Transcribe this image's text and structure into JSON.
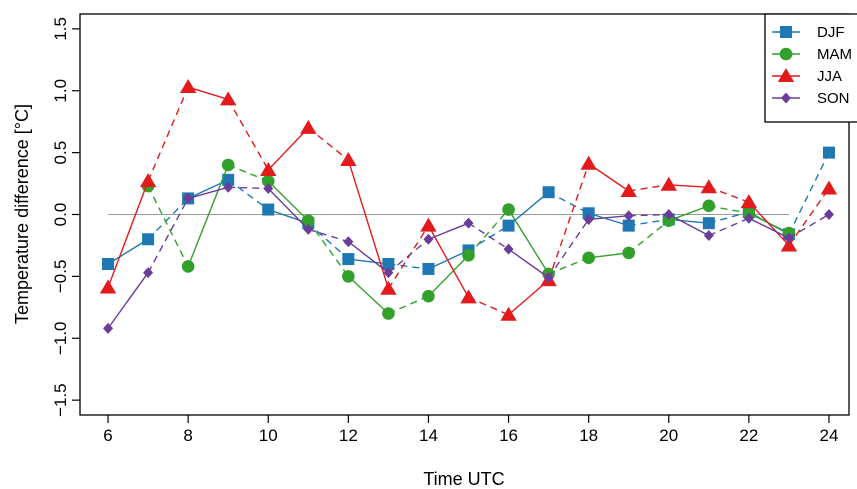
{
  "chart_data": {
    "type": "line",
    "title": "",
    "xlabel": "Time UTC",
    "ylabel": "Temperature difference [°C]",
    "xlim": [
      5.3,
      24.5
    ],
    "ylim": [
      -1.62,
      1.62
    ],
    "x_ticks": [
      6,
      8,
      10,
      12,
      14,
      16,
      18,
      20,
      22,
      24
    ],
    "x_tick_labels": [
      "6",
      "8",
      "10",
      "12",
      "14",
      "16",
      "18",
      "20",
      "22",
      "24"
    ],
    "y_ticks": [
      -1.5,
      -1.0,
      -0.5,
      0.0,
      0.5,
      1.0,
      1.5
    ],
    "y_tick_labels": [
      "−1.5",
      "−1.0",
      "−0.5",
      "0.0",
      "0.5",
      "1.0",
      "1.5"
    ],
    "zero_reference_line": true,
    "grid": false,
    "legend_position": "top-right",
    "x": [
      6,
      7,
      8,
      9,
      10,
      11,
      12,
      13,
      14,
      15,
      16,
      17,
      18,
      19,
      20,
      21,
      22,
      23,
      24
    ],
    "series": [
      {
        "name": "DJF",
        "color": "#1f78b4",
        "marker": "square",
        "values": [
          -0.4,
          -0.2,
          0.13,
          0.28,
          0.04,
          -0.07,
          -0.36,
          -0.4,
          -0.44,
          -0.29,
          -0.09,
          0.18,
          0.01,
          -0.09,
          -0.04,
          -0.07,
          0.02,
          -0.16,
          0.5
        ]
      },
      {
        "name": "MAM",
        "color": "#33a02c",
        "marker": "circle",
        "values": [
          null,
          0.23,
          -0.42,
          0.4,
          0.27,
          -0.05,
          -0.5,
          -0.8,
          -0.66,
          -0.33,
          0.04,
          -0.48,
          -0.35,
          -0.31,
          -0.05,
          0.07,
          0.01,
          -0.15,
          null
        ]
      },
      {
        "name": "JJA",
        "color": "#e31a1c",
        "marker": "triangle",
        "values": [
          -0.59,
          0.27,
          1.03,
          0.93,
          0.36,
          0.7,
          0.44,
          -0.6,
          -0.09,
          -0.67,
          -0.81,
          -0.53,
          0.41,
          0.19,
          0.24,
          0.22,
          0.1,
          -0.25,
          0.21
        ]
      },
      {
        "name": "SON",
        "color": "#6a3d9a",
        "marker": "diamond",
        "values": [
          -0.92,
          -0.47,
          0.13,
          0.22,
          0.21,
          -0.12,
          -0.22,
          -0.47,
          -0.2,
          -0.07,
          -0.28,
          -0.51,
          -0.04,
          -0.01,
          0.0,
          -0.17,
          -0.03,
          -0.19,
          0.0
        ]
      }
    ]
  }
}
